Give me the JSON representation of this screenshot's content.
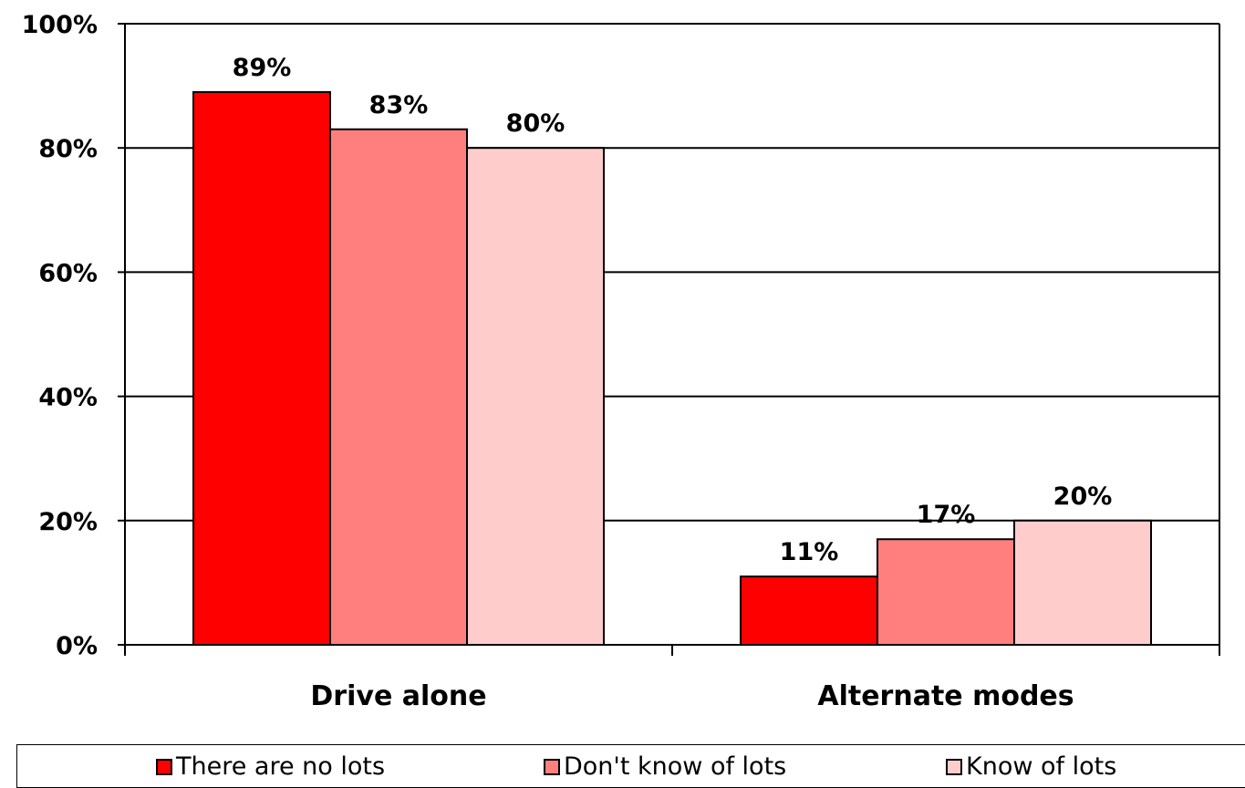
{
  "chart_data": {
    "type": "bar",
    "categories": [
      "Drive alone",
      "Alternate modes"
    ],
    "series": [
      {
        "name": "There are no lots",
        "values": [
          89,
          11
        ],
        "labels": [
          "89%",
          "11%"
        ],
        "color": "#ff0000"
      },
      {
        "name": "Don't know of lots",
        "values": [
          83,
          17
        ],
        "labels": [
          "83%",
          "17%"
        ],
        "color": "#ff7f7f"
      },
      {
        "name": "Know of lots",
        "values": [
          80,
          20
        ],
        "labels": [
          "80%",
          "20%"
        ],
        "color": "#ffcccc"
      }
    ],
    "ylim": [
      0,
      100
    ],
    "yticks": [
      0,
      20,
      40,
      60,
      80,
      100
    ],
    "ytick_labels": [
      "0%",
      "20%",
      "40%",
      "60%",
      "80%",
      "100%"
    ],
    "grid": true,
    "legend_position": "bottom"
  }
}
